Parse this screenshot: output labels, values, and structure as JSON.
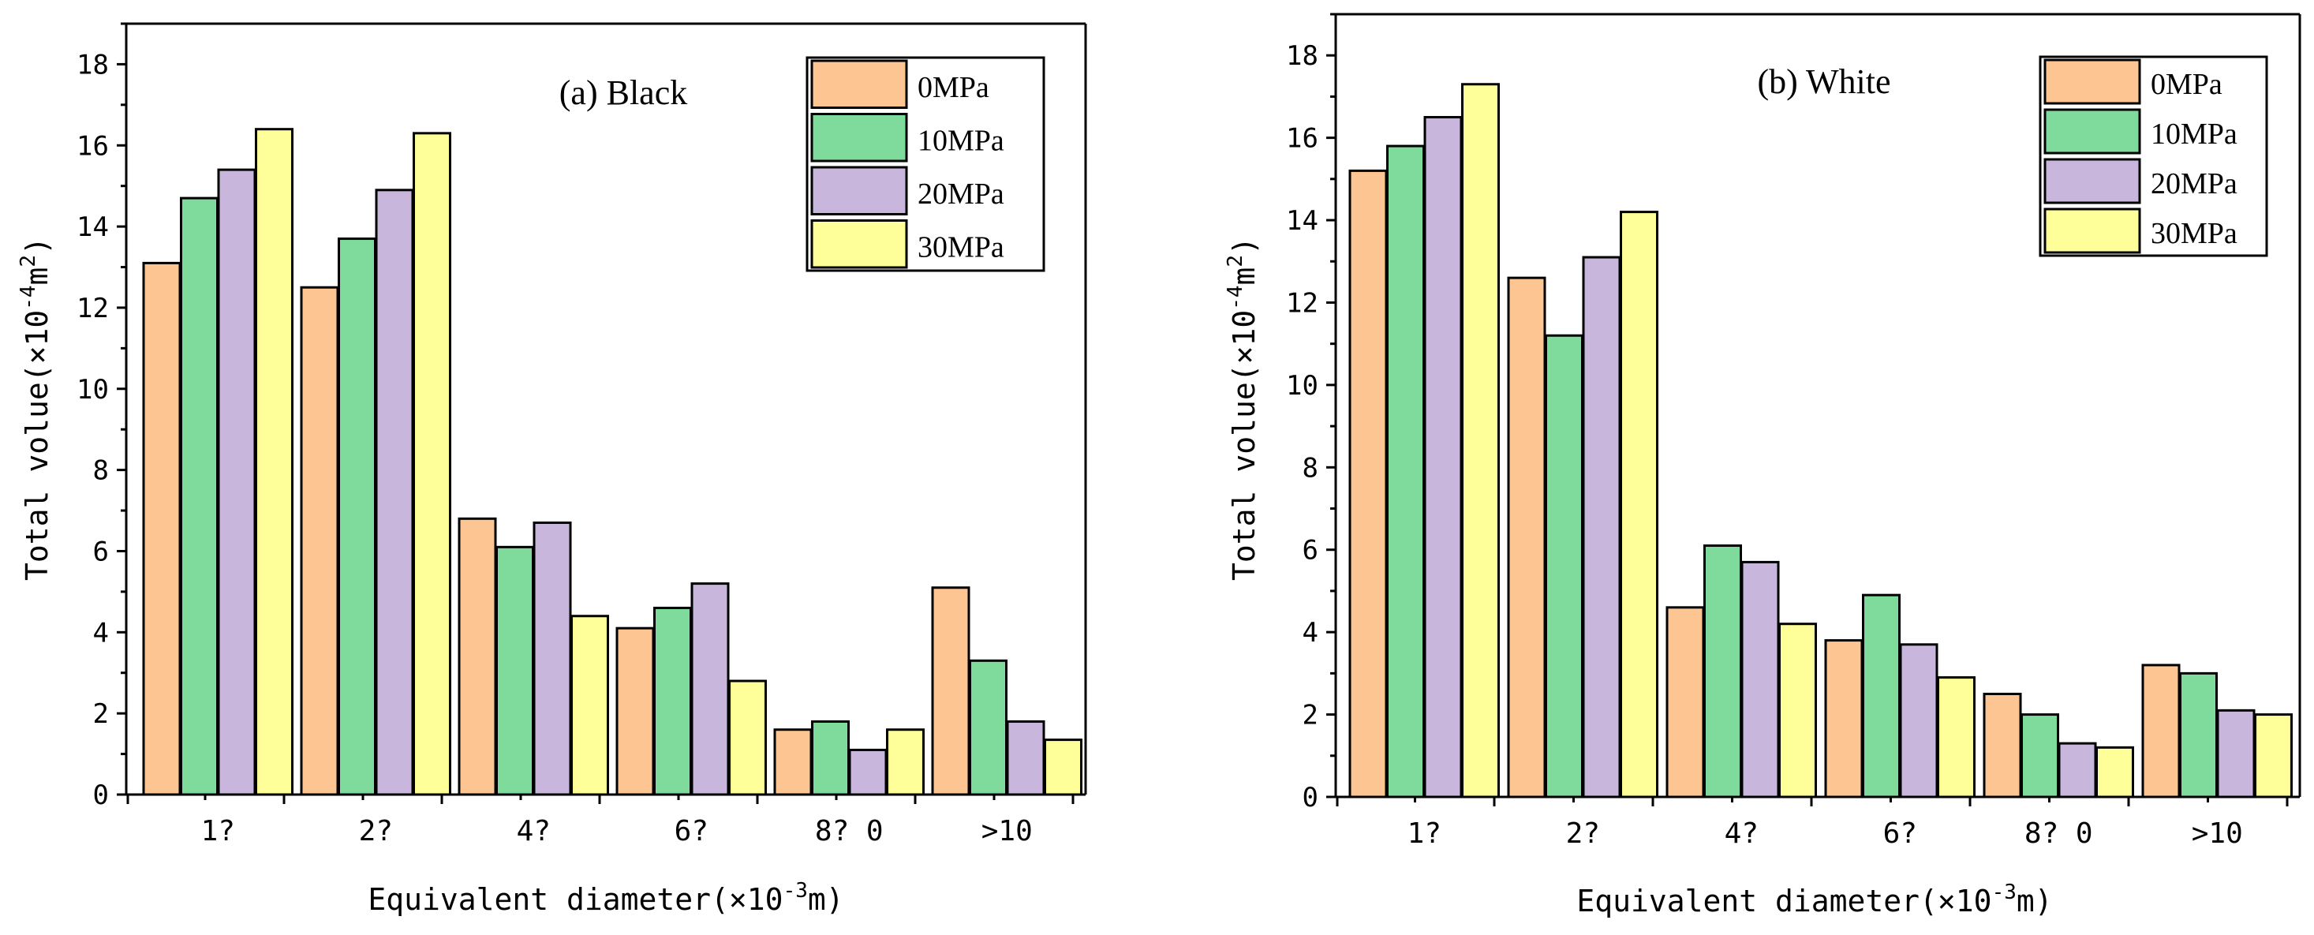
{
  "colors": {
    "axis": "#000000",
    "series": [
      "#FDC592",
      "#7FDB9C",
      "#C8B6DC",
      "#FFFF9A"
    ]
  },
  "chart_data": [
    {
      "type": "bar",
      "title": "(a) Black",
      "xlabel_main": "Equivalent diameter(×10",
      "xlabel_sup": "-3",
      "xlabel_end": "m)",
      "ylabel_main": "Total volue(×10",
      "ylabel_sup": "-4",
      "ylabel_mid": "m",
      "ylabel_sup2": "2",
      "ylabel_end": ")",
      "categories": [
        "1?",
        "2?",
        "4?",
        "6?",
        "8? 0",
        ">10"
      ],
      "ylim": [
        0,
        19
      ],
      "yticks": [
        "0",
        "2",
        "4",
        "6",
        "8",
        "10",
        "12",
        "14",
        "16",
        "18"
      ],
      "legend": "top-right",
      "series": [
        {
          "name": "0MPa",
          "values": [
            13.1,
            12.5,
            6.8,
            4.1,
            1.6,
            5.1
          ]
        },
        {
          "name": "10MPa",
          "values": [
            14.7,
            13.7,
            6.1,
            4.6,
            1.8,
            3.3
          ]
        },
        {
          "name": "20MPa",
          "values": [
            15.4,
            14.9,
            6.7,
            5.2,
            1.1,
            1.8
          ]
        },
        {
          "name": "30MPa",
          "values": [
            16.4,
            16.3,
            4.4,
            2.8,
            1.6,
            1.35
          ]
        }
      ]
    },
    {
      "type": "bar",
      "title": "(b) White",
      "xlabel_main": "Equivalent diameter(×10",
      "xlabel_sup": "-3",
      "xlabel_end": "m)",
      "ylabel_main": "Total volue(×10",
      "ylabel_sup": "-4",
      "ylabel_mid": "m",
      "ylabel_sup2": "2",
      "ylabel_end": ")",
      "categories": [
        "1?",
        "2?",
        "4?",
        "6?",
        "8? 0",
        ">10"
      ],
      "ylim": [
        0,
        19
      ],
      "yticks": [
        "0",
        "2",
        "4",
        "6",
        "8",
        "10",
        "12",
        "14",
        "16",
        "18"
      ],
      "legend": "top-right",
      "series": [
        {
          "name": "0MPa",
          "values": [
            15.2,
            12.6,
            4.6,
            3.8,
            2.5,
            3.2
          ]
        },
        {
          "name": "10MPa",
          "values": [
            15.8,
            11.2,
            6.1,
            4.9,
            2.0,
            3.0
          ]
        },
        {
          "name": "20MPa",
          "values": [
            16.5,
            13.1,
            5.7,
            3.7,
            1.3,
            2.1
          ]
        },
        {
          "name": "30MPa",
          "values": [
            17.3,
            14.2,
            4.2,
            2.9,
            1.2,
            2.0
          ]
        }
      ]
    }
  ]
}
